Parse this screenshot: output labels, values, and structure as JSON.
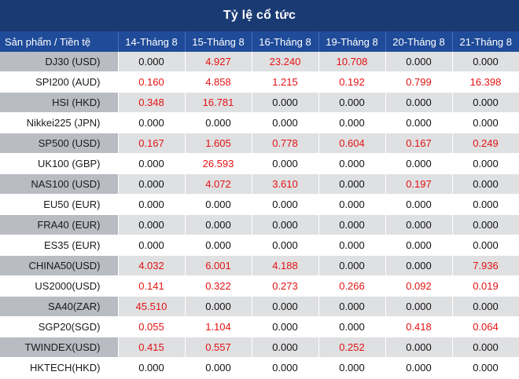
{
  "title": "Tỷ lệ cổ tức",
  "headers": [
    "Sản phẩm / Tiền tệ",
    "14-Tháng 8",
    "15-Tháng 8",
    "16-Tháng 8",
    "19-Tháng 8",
    "20-Tháng 8",
    "21-Tháng 8"
  ],
  "rows": [
    {
      "name": "DJ30 (USD)",
      "values": [
        "0.000",
        "4.927",
        "23.240",
        "10.708",
        "0.000",
        "0.000"
      ]
    },
    {
      "name": "SPI200 (AUD)",
      "values": [
        "0.160",
        "4.858",
        "1.215",
        "0.192",
        "0.799",
        "16.398"
      ]
    },
    {
      "name": "HSI (HKD)",
      "values": [
        "0.348",
        "16.781",
        "0.000",
        "0.000",
        "0.000",
        "0.000"
      ]
    },
    {
      "name": "Nikkei225 (JPN)",
      "values": [
        "0.000",
        "0.000",
        "0.000",
        "0.000",
        "0.000",
        "0.000"
      ]
    },
    {
      "name": "SP500 (USD)",
      "values": [
        "0.167",
        "1.605",
        "0.778",
        "0.604",
        "0.167",
        "0.249"
      ]
    },
    {
      "name": "UK100 (GBP)",
      "values": [
        "0.000",
        "26.593",
        "0.000",
        "0.000",
        "0.000",
        "0.000"
      ]
    },
    {
      "name": "NAS100 (USD)",
      "values": [
        "0.000",
        "4.072",
        "3.610",
        "0.000",
        "0.197",
        "0.000"
      ]
    },
    {
      "name": "EU50 (EUR)",
      "values": [
        "0.000",
        "0.000",
        "0.000",
        "0.000",
        "0.000",
        "0.000"
      ]
    },
    {
      "name": "FRA40 (EUR)",
      "values": [
        "0.000",
        "0.000",
        "0.000",
        "0.000",
        "0.000",
        "0.000"
      ]
    },
    {
      "name": "ES35 (EUR)",
      "values": [
        "0.000",
        "0.000",
        "0.000",
        "0.000",
        "0.000",
        "0.000"
      ]
    },
    {
      "name": "CHINA50(USD)",
      "values": [
        "4.032",
        "6.001",
        "4.188",
        "0.000",
        "0.000",
        "7.936"
      ]
    },
    {
      "name": "US2000(USD)",
      "values": [
        "0.141",
        "0.322",
        "0.273",
        "0.266",
        "0.092",
        "0.019"
      ]
    },
    {
      "name": "SA40(ZAR)",
      "values": [
        "45.510",
        "0.000",
        "0.000",
        "0.000",
        "0.000",
        "0.000"
      ]
    },
    {
      "name": "SGP20(SGD)",
      "values": [
        "0.055",
        "1.104",
        "0.000",
        "0.000",
        "0.418",
        "0.064"
      ]
    },
    {
      "name": "TWINDEX(USD)",
      "values": [
        "0.415",
        "0.557",
        "0.000",
        "0.252",
        "0.000",
        "0.000"
      ]
    },
    {
      "name": "HKTECH(HKD)",
      "values": [
        "0.000",
        "0.000",
        "0.000",
        "0.000",
        "0.000",
        "0.000"
      ]
    }
  ],
  "colors": {
    "title_bg": "#1a3a73",
    "header_bg": "#1f4b99",
    "shade_row": "#dfe0e2",
    "shade_name": "#b9bcc2",
    "nonzero_value": "#e31212",
    "zero_value": "#111111"
  }
}
